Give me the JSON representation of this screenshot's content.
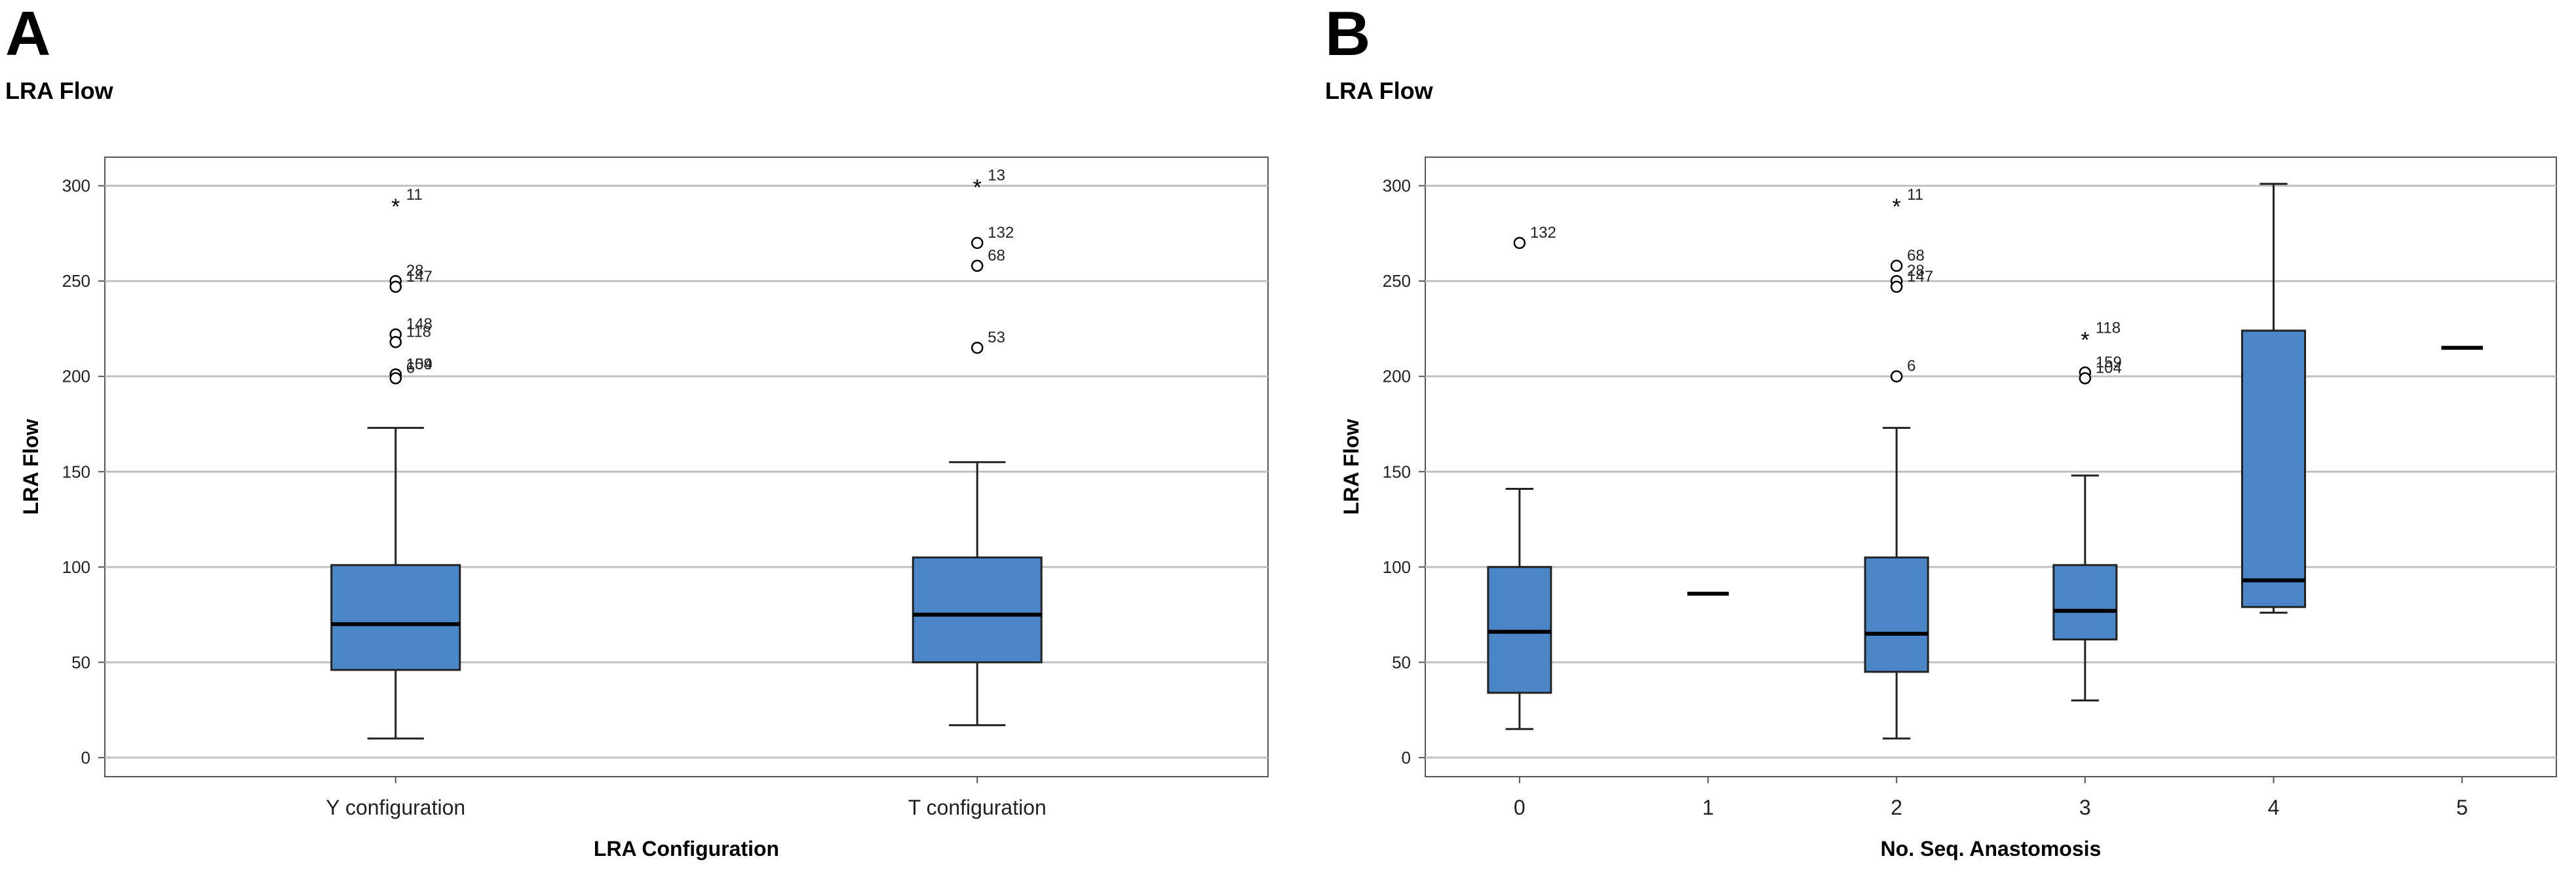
{
  "figure": {
    "panels": [
      {
        "letter": "A",
        "title": "LRA Flow"
      },
      {
        "letter": "B",
        "title": "LRA Flow"
      }
    ]
  },
  "colors": {
    "box_fill": "#4a86c8",
    "box_stroke": "#222222",
    "grid": "#c0c0c0",
    "axis": "#555555"
  },
  "chart_data": [
    {
      "type": "boxplot",
      "title": "LRA Flow",
      "xlabel": "LRA Configuration",
      "ylabel": "LRA Flow",
      "ylim": [
        -10,
        315
      ],
      "yticks": [
        0,
        50,
        100,
        150,
        200,
        250,
        300
      ],
      "grid": true,
      "categories": [
        "Y configuration",
        "T configuration"
      ],
      "boxes": [
        {
          "min": 10,
          "q1": 46,
          "median": 70,
          "q3": 101,
          "max": 173
        },
        {
          "min": 17,
          "q1": 50,
          "median": 75,
          "q3": 105,
          "max": 155
        }
      ],
      "outliers": [
        {
          "cat": 0,
          "value": 290,
          "marker": "star",
          "label": "11"
        },
        {
          "cat": 0,
          "value": 250,
          "marker": "circle",
          "label": "28"
        },
        {
          "cat": 0,
          "value": 247,
          "marker": "circle",
          "label": "147"
        },
        {
          "cat": 0,
          "value": 222,
          "marker": "circle",
          "label": "148"
        },
        {
          "cat": 0,
          "value": 218,
          "marker": "circle",
          "label": "118"
        },
        {
          "cat": 0,
          "value": 201,
          "marker": "circle",
          "label": "104"
        },
        {
          "cat": 0,
          "value": 201,
          "marker": "circle",
          "label": "159"
        },
        {
          "cat": 0,
          "value": 199,
          "marker": "circle",
          "label": "6"
        },
        {
          "cat": 1,
          "value": 300,
          "marker": "star",
          "label": "13"
        },
        {
          "cat": 1,
          "value": 270,
          "marker": "circle",
          "label": "132"
        },
        {
          "cat": 1,
          "value": 258,
          "marker": "circle",
          "label": "68"
        },
        {
          "cat": 1,
          "value": 215,
          "marker": "circle",
          "label": "53"
        }
      ]
    },
    {
      "type": "boxplot",
      "title": "LRA Flow",
      "xlabel": "No. Seq. Anastomosis",
      "ylabel": "LRA Flow",
      "ylim": [
        -10,
        315
      ],
      "yticks": [
        0,
        50,
        100,
        150,
        200,
        250,
        300
      ],
      "grid": true,
      "categories": [
        "0",
        "1",
        "2",
        "3",
        "4",
        "5"
      ],
      "boxes": [
        {
          "min": 15,
          "q1": 34,
          "median": 66,
          "q3": 100,
          "max": 141
        },
        {
          "min": 86,
          "q1": 86,
          "median": 86,
          "q3": 86,
          "max": 86
        },
        {
          "min": 10,
          "q1": 45,
          "median": 65,
          "q3": 105,
          "max": 173
        },
        {
          "min": 30,
          "q1": 62,
          "median": 77,
          "q3": 101,
          "max": 148
        },
        {
          "min": 76,
          "q1": 79,
          "median": 93,
          "q3": 224,
          "max": 301
        },
        {
          "min": 215,
          "q1": 215,
          "median": 215,
          "q3": 215,
          "max": 215
        }
      ],
      "outliers": [
        {
          "cat": 0,
          "value": 270,
          "marker": "circle",
          "label": "132"
        },
        {
          "cat": 2,
          "value": 290,
          "marker": "star",
          "label": "11"
        },
        {
          "cat": 2,
          "value": 258,
          "marker": "circle",
          "label": "68"
        },
        {
          "cat": 2,
          "value": 250,
          "marker": "circle",
          "label": "28"
        },
        {
          "cat": 2,
          "value": 247,
          "marker": "circle",
          "label": "147"
        },
        {
          "cat": 2,
          "value": 200,
          "marker": "circle",
          "label": "6"
        },
        {
          "cat": 3,
          "value": 220,
          "marker": "star",
          "label": "118"
        },
        {
          "cat": 3,
          "value": 202,
          "marker": "circle",
          "label": "159"
        },
        {
          "cat": 3,
          "value": 199,
          "marker": "circle",
          "label": "104"
        }
      ]
    }
  ]
}
